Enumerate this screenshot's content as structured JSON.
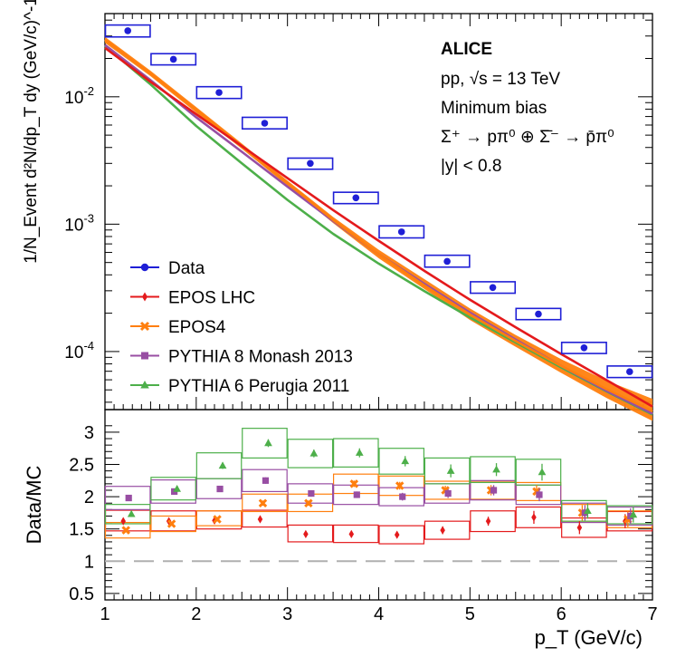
{
  "chart_data": [
    {
      "type": "scatter",
      "panel": "spectrum",
      "ylabel": "1/N_Event d²N/dp_T dy (GeV/c)^-1",
      "yscale": "log",
      "xlim": [
        1,
        7
      ],
      "ylim": [
        3.5e-05,
        0.045
      ],
      "annotations": [
        "ALICE",
        "pp, √s = 13 TeV",
        "Minimum bias",
        "Σ⁺ → pπ⁰ ⊕ Σ̄⁻ → p̄π⁰",
        "|y| < 0.8"
      ],
      "yticks": [
        {
          "value": 0.0001,
          "mant": "10",
          "exp": "-4"
        },
        {
          "value": 0.001,
          "mant": "10",
          "exp": "-3"
        },
        {
          "value": 0.01,
          "mant": "10",
          "exp": "-2"
        }
      ],
      "legend_position": "bottom-left",
      "series": [
        {
          "name": "Data",
          "color": "#1f1fd6",
          "marker": "circle",
          "x": [
            1.25,
            1.75,
            2.25,
            2.75,
            3.25,
            3.75,
            4.25,
            4.75,
            5.25,
            5.75,
            6.25,
            6.75
          ],
          "y": [
            0.033,
            0.0197,
            0.0108,
            0.0062,
            0.003,
            0.00161,
            0.00087,
            0.00051,
            0.000318,
            0.000197,
            0.000107,
            6.95e-05
          ],
          "x_bin_low": [
            1.0,
            1.5,
            2.0,
            2.5,
            3.0,
            3.5,
            4.0,
            4.5,
            5.0,
            5.5,
            6.0,
            6.5
          ],
          "x_bin_high": [
            1.5,
            2.0,
            2.5,
            3.0,
            3.5,
            4.0,
            4.5,
            5.0,
            5.5,
            6.0,
            6.5,
            7.0
          ],
          "sys_low": [
            0.0295,
            0.0178,
            0.0097,
            0.0056,
            0.0027,
            0.00145,
            0.00078,
            0.00046,
            0.000287,
            0.000178,
            9.65e-05,
            6.25e-05
          ],
          "sys_high": [
            0.0366,
            0.0218,
            0.012,
            0.0069,
            0.0033,
            0.00178,
            0.00097,
            0.00057,
            0.000353,
            0.000218,
            0.000118,
            7.7e-05
          ]
        },
        {
          "name": "EPOS LHC",
          "color": "#e41a1c",
          "marker": "diamond",
          "x": [
            1,
            1.5,
            2,
            2.5,
            3,
            3.5,
            4,
            4.5,
            5,
            5.5,
            6,
            6.5,
            7
          ],
          "y": [
            0.0242,
            0.0131,
            0.0073,
            0.0041,
            0.0023,
            0.00129,
            0.00074,
            0.00043,
            0.000255,
            0.000155,
            9.55e-05,
            5.95e-05,
            3.7e-05
          ]
        },
        {
          "name": "EPOS4",
          "color": "#ff7f0e",
          "marker": "cross",
          "x": [
            1,
            1.5,
            2,
            2.5,
            3,
            3.5,
            4,
            4.5,
            5,
            5.5,
            6,
            6.5,
            7
          ],
          "y": [
            0.028,
            0.0152,
            0.0079,
            0.0041,
            0.0021,
            0.00108,
            0.00058,
            0.00033,
            0.000195,
            0.000121,
            7.7e-05,
            5.05e-05,
            3.4e-05
          ],
          "band_low": [
            0.0265,
            0.0145,
            0.0075,
            0.0039,
            0.002,
            0.00102,
            0.00054,
            0.00031,
            0.000177,
            0.000109,
            6.8e-05,
            4.3e-05,
            2.85e-05
          ],
          "band_high": [
            0.0295,
            0.016,
            0.0083,
            0.0043,
            0.0022,
            0.00114,
            0.00063,
            0.00037,
            0.000218,
            0.000135,
            8.7e-05,
            5.9e-05,
            4.25e-05
          ]
        },
        {
          "name": "PYTHIA 8 Monash 2013",
          "color": "#984ea3",
          "marker": "square",
          "x": [
            1,
            1.5,
            2,
            2.5,
            3,
            3.5,
            4,
            4.5,
            5,
            5.5,
            6,
            6.5,
            7
          ],
          "y": [
            0.0255,
            0.0135,
            0.0069,
            0.0037,
            0.00197,
            0.00106,
            0.00058,
            0.00034,
            0.000202,
            0.000124,
            7.7e-05,
            4.9e-05,
            3.25e-05
          ]
        },
        {
          "name": "PYTHIA 6 Perugia 2011",
          "color": "#4daf4a",
          "marker": "triangle",
          "x": [
            1,
            1.5,
            2,
            2.5,
            3,
            3.5,
            4,
            4.5,
            5,
            5.5,
            6,
            6.5,
            7
          ],
          "y": [
            0.025,
            0.0125,
            0.0059,
            0.003,
            0.00155,
            0.00084,
            0.00049,
            0.000298,
            0.000185,
            0.000118,
            7.5e-05,
            4.85e-05,
            3.2e-05
          ]
        }
      ]
    },
    {
      "type": "scatter",
      "panel": "ratio",
      "xlabel": "p_T (GeV/c)",
      "ylabel": "Data/MC",
      "xlim": [
        1,
        7
      ],
      "ylim": [
        0.4,
        3.35
      ],
      "x_ticks": [
        1,
        2,
        3,
        4,
        5,
        6,
        7
      ],
      "y_ticks": [
        0.5,
        1,
        1.5,
        2,
        2.5,
        3
      ],
      "y_tick_labels": [
        "0.5",
        "1",
        "1.5",
        "2",
        "2.5",
        "3"
      ],
      "reference_line": 1,
      "x_bin_low": [
        1.0,
        1.5,
        2.0,
        2.5,
        3.0,
        3.5,
        4.0,
        4.5,
        5.0,
        5.5,
        6.0,
        6.5
      ],
      "x_bin_high": [
        1.5,
        2.0,
        2.5,
        3.0,
        3.5,
        4.0,
        4.5,
        5.0,
        5.5,
        6.0,
        6.5,
        7.0
      ],
      "x": [
        1.25,
        1.75,
        2.25,
        2.75,
        3.25,
        3.75,
        4.25,
        4.75,
        5.25,
        5.75,
        6.25,
        6.75
      ],
      "series": [
        {
          "name": "EPOS LHC",
          "color": "#e41a1c",
          "marker": "diamond",
          "y": [
            1.62,
            1.62,
            1.63,
            1.65,
            1.42,
            1.42,
            1.41,
            1.48,
            1.62,
            1.68,
            1.52,
            1.62
          ],
          "box_low": [
            1.47,
            1.47,
            1.5,
            1.53,
            1.3,
            1.29,
            1.27,
            1.34,
            1.46,
            1.52,
            1.37,
            1.47
          ],
          "box_high": [
            1.79,
            1.78,
            1.78,
            1.79,
            1.56,
            1.56,
            1.55,
            1.62,
            1.78,
            1.84,
            1.67,
            1.77
          ],
          "err": [
            0.03,
            0.03,
            0.03,
            0.04,
            0.04,
            0.04,
            0.05,
            0.06,
            0.07,
            0.1,
            0.1,
            0.11
          ]
        },
        {
          "name": "EPOS4",
          "color": "#ff7f0e",
          "marker": "cross",
          "y": [
            1.48,
            1.58,
            1.65,
            1.9,
            1.9,
            2.2,
            2.17,
            2.1,
            2.1,
            2.08,
            1.75,
            1.65
          ],
          "box_low": [
            1.36,
            1.46,
            1.55,
            1.77,
            1.77,
            2.05,
            2.02,
            1.96,
            1.96,
            1.94,
            1.62,
            1.52
          ],
          "box_high": [
            1.6,
            1.7,
            1.78,
            2.04,
            2.04,
            2.35,
            2.32,
            2.24,
            2.24,
            2.22,
            1.88,
            1.78
          ],
          "err": [
            0.03,
            0.03,
            0.03,
            0.04,
            0.04,
            0.05,
            0.06,
            0.07,
            0.08,
            0.1,
            0.12,
            0.12
          ]
        },
        {
          "name": "PYTHIA 8 Monash 2013",
          "color": "#984ea3",
          "marker": "square",
          "y": [
            1.98,
            2.08,
            2.12,
            2.25,
            2.05,
            2.03,
            2.0,
            2.05,
            2.1,
            2.03,
            1.75,
            1.7
          ],
          "box_low": [
            1.8,
            1.9,
            1.97,
            2.08,
            1.9,
            1.88,
            1.86,
            1.9,
            1.95,
            1.88,
            1.6,
            1.56
          ],
          "box_high": [
            2.16,
            2.26,
            2.28,
            2.42,
            2.2,
            2.18,
            2.14,
            2.2,
            2.25,
            2.18,
            1.9,
            1.84
          ],
          "err": [
            0.04,
            0.04,
            0.04,
            0.05,
            0.05,
            0.05,
            0.06,
            0.07,
            0.08,
            0.1,
            0.12,
            0.12
          ]
        },
        {
          "name": "PYTHIA 6 Perugia 2011",
          "color": "#4daf4a",
          "marker": "triangle",
          "y": [
            1.73,
            2.12,
            2.48,
            2.83,
            2.67,
            2.68,
            2.55,
            2.4,
            2.42,
            2.38,
            1.78,
            1.72
          ],
          "box_low": [
            1.58,
            1.95,
            2.28,
            2.6,
            2.45,
            2.46,
            2.35,
            2.2,
            2.22,
            2.18,
            1.62,
            1.58
          ],
          "box_high": [
            1.88,
            2.3,
            2.68,
            3.06,
            2.89,
            2.9,
            2.75,
            2.6,
            2.62,
            2.58,
            1.94,
            1.86
          ],
          "err": [
            0.04,
            0.05,
            0.05,
            0.06,
            0.06,
            0.07,
            0.08,
            0.1,
            0.1,
            0.13,
            0.12,
            0.12
          ]
        }
      ]
    }
  ]
}
